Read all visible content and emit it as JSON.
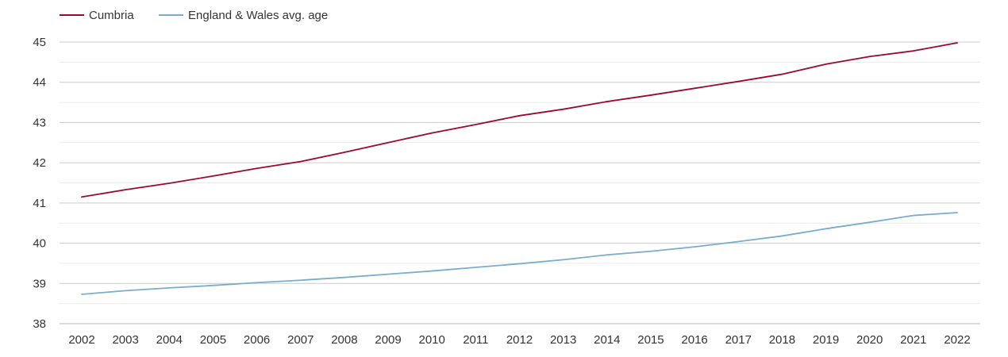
{
  "chart_data": {
    "type": "line",
    "x": [
      2002,
      2003,
      2004,
      2005,
      2006,
      2007,
      2008,
      2009,
      2010,
      2011,
      2012,
      2013,
      2014,
      2015,
      2016,
      2017,
      2018,
      2019,
      2020,
      2021,
      2022
    ],
    "series": [
      {
        "name": "Cumbria",
        "color": "#9b0a2e",
        "values": [
          41.15,
          41.33,
          41.49,
          41.67,
          41.86,
          42.03,
          42.26,
          42.5,
          42.74,
          42.95,
          43.17,
          43.33,
          43.52,
          43.68,
          43.85,
          44.02,
          44.2,
          44.45,
          44.64,
          44.78,
          44.98
        ]
      },
      {
        "name": "England & Wales avg. age",
        "color": "#7aaccc",
        "values": [
          38.73,
          38.82,
          38.89,
          38.95,
          39.02,
          39.08,
          39.15,
          39.23,
          39.31,
          39.4,
          39.49,
          39.59,
          39.71,
          39.8,
          39.91,
          40.04,
          40.18,
          40.36,
          40.52,
          40.69,
          40.76
        ]
      }
    ],
    "yticks": [
      38,
      39,
      40,
      41,
      42,
      43,
      44,
      45
    ],
    "ylim": [
      38,
      45
    ],
    "grid": true,
    "legend_position": "top-left"
  }
}
